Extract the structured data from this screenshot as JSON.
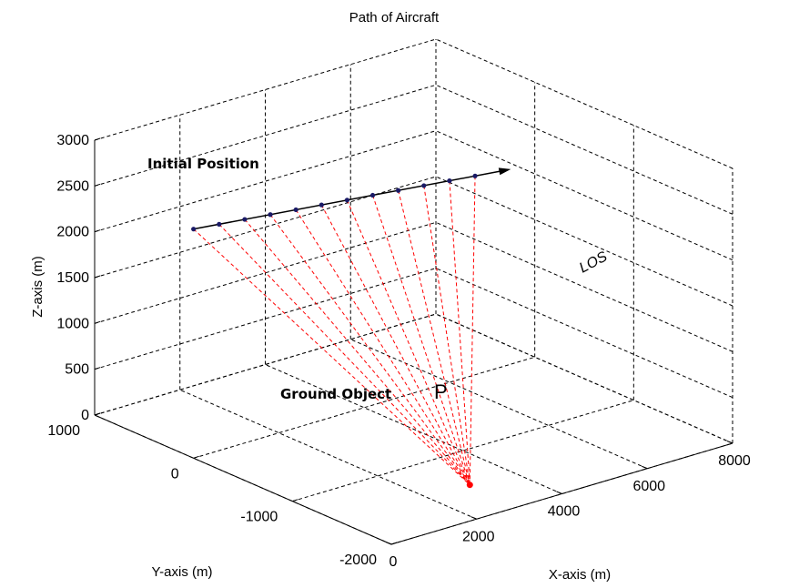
{
  "chart_data": {
    "type": "line",
    "title": "Path of Aircraft",
    "xlabel": "X-axis (m)",
    "ylabel": "Y-axis (m)",
    "zlabel": "Z-axis (m)",
    "xlim": [
      0,
      8000
    ],
    "ylim": [
      -2000,
      1000
    ],
    "zlim": [
      0,
      3000
    ],
    "x_ticks": [
      "0",
      "2000",
      "4000",
      "6000",
      "8000"
    ],
    "y_ticks": [
      "-2000",
      "-1000",
      "0",
      "1000"
    ],
    "z_ticks": [
      "0",
      "500",
      "1000",
      "1500",
      "2000",
      "2500",
      "3000"
    ],
    "grid": true,
    "series": [
      {
        "role": "path",
        "color": "#000000",
        "marker_color": "#1a1a66",
        "points": [
          {
            "x": 0,
            "y": 0,
            "z": 2500
          },
          {
            "x": 600,
            "y": 0,
            "z": 2470
          },
          {
            "x": 1200,
            "y": 0,
            "z": 2440
          },
          {
            "x": 1800,
            "y": 0,
            "z": 2410
          },
          {
            "x": 2400,
            "y": 0,
            "z": 2380
          },
          {
            "x": 3000,
            "y": 0,
            "z": 2350
          },
          {
            "x": 3600,
            "y": 0,
            "z": 2320
          },
          {
            "x": 4200,
            "y": 0,
            "z": 2290
          },
          {
            "x": 4800,
            "y": 0,
            "z": 2260
          },
          {
            "x": 5400,
            "y": 0,
            "z": 2230
          },
          {
            "x": 6000,
            "y": 0,
            "z": 2200
          },
          {
            "x": 6600,
            "y": 0,
            "z": 2170
          }
        ]
      },
      {
        "role": "lines-of-sight",
        "color": "#ff0000",
        "target": {
          "x": 3000,
          "y": -1500,
          "z": 0
        }
      }
    ],
    "annotations": {
      "initial_position": "Initial Position",
      "ground_object": "Ground Object",
      "p_label": "P",
      "los": "LOS"
    }
  }
}
